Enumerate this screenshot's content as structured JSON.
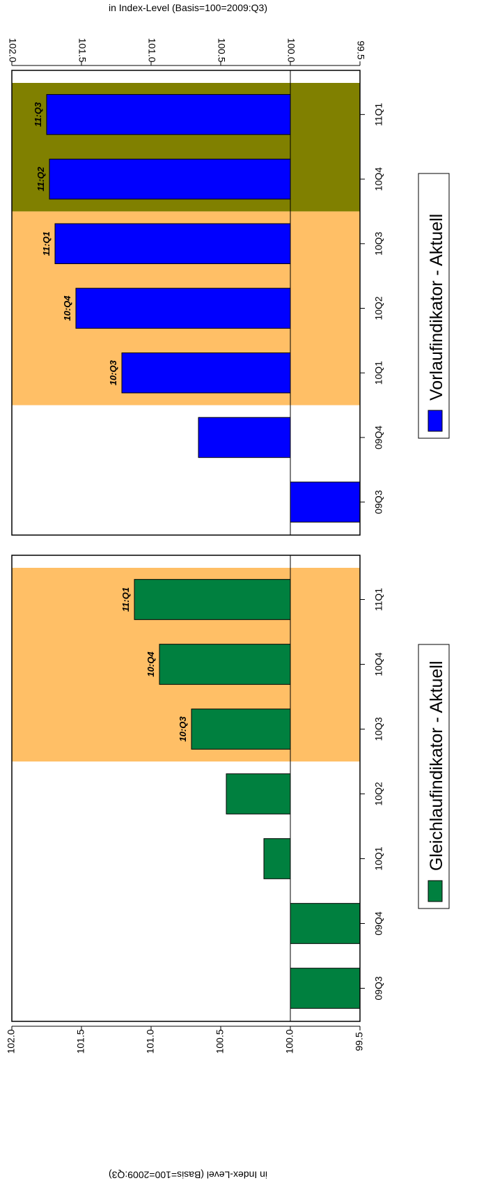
{
  "chart_data": [
    {
      "type": "bar",
      "axis_title": "in Index-Level (Basis=100=2009:Q3)",
      "ylim": [
        99.5,
        102.0
      ],
      "yticks": [
        "99.5",
        "100.0",
        "100.5",
        "101.0",
        "101.5",
        "102.0"
      ],
      "categories": [
        "09Q3",
        "09Q4",
        "10Q1",
        "10Q2",
        "10Q3",
        "10Q4",
        "11Q1"
      ],
      "series": [
        {
          "name": "Vorlaufindikator - Aktuell",
          "color": "#0000ff",
          "values": [
            99.75,
            100.66,
            101.21,
            101.54,
            101.69,
            101.73,
            101.75
          ]
        }
      ],
      "bar_labels": [
        "",
        "",
        "10:Q3",
        "10:Q4",
        "11:Q1",
        "11:Q2",
        "11:Q3"
      ],
      "shaded_regions": [
        {
          "from": "10Q1",
          "to": "10Q3",
          "color": "#ffbf66"
        },
        {
          "from": "10Q4",
          "to": "11Q1",
          "color": "#808000"
        }
      ],
      "reference_line": 100.0,
      "legend": "bottom"
    },
    {
      "type": "bar",
      "axis_title": "in Index-Level (Basis=100=2009:Q3)",
      "ylim": [
        99.5,
        102.0
      ],
      "yticks": [
        "99.5",
        "100.0",
        "100.5",
        "101.0",
        "101.5",
        "102.0"
      ],
      "categories": [
        "09Q3",
        "09Q4",
        "10Q1",
        "10Q2",
        "10Q3",
        "10Q4",
        "11Q1"
      ],
      "series": [
        {
          "name": "Gleichlaufindikator - Aktuell",
          "color": "#00803f",
          "values": [
            100.0,
            100.0,
            100.19,
            100.46,
            100.71,
            100.94,
            101.12
          ]
        }
      ],
      "bar_labels": [
        "",
        "",
        "",
        "",
        "10:Q3",
        "10:Q4",
        "11:Q1"
      ],
      "shaded_regions": [
        {
          "from": "10Q3",
          "to": "11Q1",
          "color": "#ffbf66"
        }
      ],
      "reference_line": 100.0,
      "legend": "bottom"
    }
  ]
}
